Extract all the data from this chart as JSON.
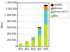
{
  "years": [
    "2010",
    "2015",
    "2020",
    "2025",
    "2030"
  ],
  "series": {
    "China": [
      80000,
      120000,
      200000,
      350000,
      700000
    ],
    "Lithium-Ion": [
      10000,
      20000,
      60000,
      200000,
      450000
    ],
    "stationary": [
      3000,
      8000,
      20000,
      50000,
      120000
    ],
    "e-mobility": [
      1000,
      3000,
      8000,
      20000,
      50000
    ]
  },
  "colors": {
    "China": "#b8e020",
    "Lithium-Ion": "#50c8d0",
    "stationary": "#f08020",
    "e-mobility": "#202020"
  },
  "legend_labels": {
    "e-mobility": "e-mobility",
    "stationary": "stationary",
    "Lithium-Ion": "Lithium-Ion (Li)",
    "China": "China"
  },
  "ylabel": "GWh/a",
  "ylim": [
    0,
    1400000
  ],
  "ytick_vals": [
    0,
    200000,
    400000,
    600000,
    800000,
    1000000,
    1200000,
    1400000
  ],
  "ytick_labels": [
    "0",
    "200 000",
    "400 000",
    "600 000",
    "800 000",
    "1 000 000",
    "1 200 000",
    "1 400 000"
  ],
  "background_color": "#ffffff",
  "grid_color": "#cccccc"
}
